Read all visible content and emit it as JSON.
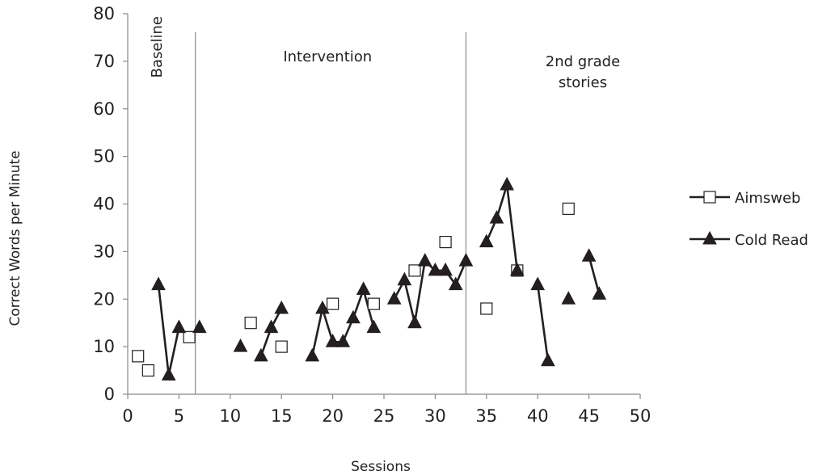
{
  "chart_data": {
    "type": "line",
    "xlabel": "Sessions",
    "ylabel": "Correct Words per Minute",
    "xlim": [
      0,
      50
    ],
    "ylim": [
      0,
      80
    ],
    "xticks": [
      "0",
      "5",
      "10",
      "15",
      "20",
      "25",
      "30",
      "35",
      "40",
      "45",
      "50"
    ],
    "yticks": [
      "0",
      "10",
      "20",
      "30",
      "40",
      "50",
      "60",
      "70",
      "80"
    ],
    "grid": false,
    "legend_position": "right",
    "phase_lines": [
      6.6,
      33
    ],
    "phases": [
      {
        "label": "Baseline",
        "x": 3.3,
        "y": 73
      },
      {
        "label": "Intervention",
        "x": 19.5,
        "y": 70
      },
      {
        "label": "2nd grade stories",
        "x": 44.4,
        "y": 69
      }
    ],
    "series": [
      {
        "name": "Aimsweb",
        "marker": "square-open",
        "points": [
          [
            1,
            8
          ],
          [
            2,
            5
          ],
          [
            6,
            12
          ],
          [
            12,
            15
          ],
          [
            15,
            10
          ],
          [
            20,
            19
          ],
          [
            24,
            19
          ],
          [
            28,
            26
          ],
          [
            31,
            32
          ],
          [
            35,
            18
          ],
          [
            38,
            26
          ],
          [
            43,
            39
          ]
        ],
        "segments": []
      },
      {
        "name": "Cold Read",
        "marker": "triangle-filled",
        "points": [
          [
            3,
            23
          ],
          [
            4,
            4
          ],
          [
            5,
            14
          ],
          [
            7,
            14
          ],
          [
            11,
            10
          ],
          [
            13,
            8
          ],
          [
            14,
            14
          ],
          [
            15,
            18
          ],
          [
            18,
            8
          ],
          [
            19,
            18
          ],
          [
            20,
            11
          ],
          [
            21,
            11
          ],
          [
            22,
            16
          ],
          [
            23,
            22
          ],
          [
            24,
            14
          ],
          [
            26,
            20
          ],
          [
            27,
            24
          ],
          [
            28,
            15
          ],
          [
            29,
            28
          ],
          [
            30,
            26
          ],
          [
            31,
            26
          ],
          [
            32,
            23
          ],
          [
            33,
            28
          ],
          [
            35,
            32
          ],
          [
            36,
            37
          ],
          [
            37,
            44
          ],
          [
            38,
            26
          ],
          [
            40,
            23
          ],
          [
            41,
            7
          ],
          [
            43,
            20
          ],
          [
            45,
            29
          ],
          [
            46,
            21
          ]
        ],
        "segments": [
          [
            [
              3,
              23
            ],
            [
              4,
              4
            ],
            [
              5,
              14
            ]
          ],
          [
            [
              13,
              8
            ],
            [
              14,
              14
            ],
            [
              15,
              18
            ]
          ],
          [
            [
              18,
              8
            ],
            [
              19,
              18
            ],
            [
              20,
              11
            ],
            [
              21,
              11
            ],
            [
              22,
              16
            ],
            [
              23,
              22
            ],
            [
              24,
              14
            ]
          ],
          [
            [
              26,
              20
            ],
            [
              27,
              24
            ],
            [
              28,
              15
            ],
            [
              29,
              28
            ],
            [
              30,
              26
            ],
            [
              31,
              26
            ],
            [
              32,
              23
            ],
            [
              33,
              28
            ]
          ],
          [
            [
              35,
              32
            ],
            [
              36,
              37
            ],
            [
              37,
              44
            ],
            [
              38,
              26
            ]
          ],
          [
            [
              40,
              23
            ],
            [
              41,
              7
            ]
          ],
          [
            [
              45,
              29
            ],
            [
              46,
              21
            ]
          ]
        ]
      }
    ]
  }
}
